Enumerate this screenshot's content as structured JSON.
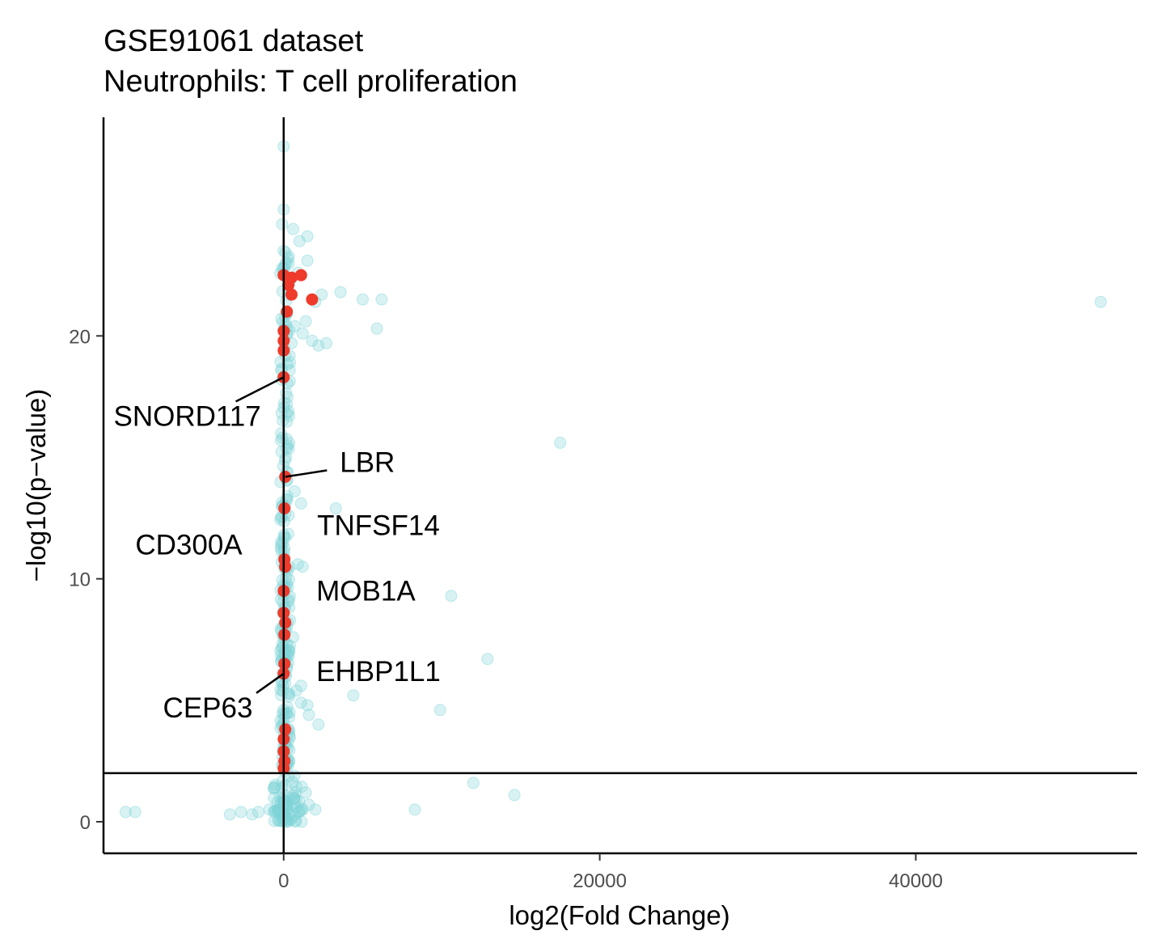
{
  "chart_data": {
    "type": "scatter",
    "title": "GSE91061 dataset",
    "subtitle": "Neutrophils: T cell proliferation",
    "xlabel": "log2(Fold Change)",
    "ylabel": "−log10(p−value)",
    "xlim": [
      -11400,
      54000
    ],
    "ylim": [
      -1.3,
      29
    ],
    "x_ticks": [
      0,
      20000,
      40000
    ],
    "x_tick_labels": [
      "0",
      "20000",
      "40000"
    ],
    "y_ticks": [
      0,
      10,
      20
    ],
    "y_tick_labels": [
      "0",
      "10",
      "20"
    ],
    "grid": false,
    "legend": "none",
    "reference_lines": {
      "vertical_x": 0,
      "horizontal_y": 2
    },
    "colors": {
      "background_points": "#7fd3d6",
      "highlight_points": "#ee3b2b"
    },
    "background_points": [
      [
        -10000,
        0.4
      ],
      [
        -9400,
        0.4
      ],
      [
        -3400,
        0.3
      ],
      [
        -2700,
        0.4
      ],
      [
        -2000,
        0.3
      ],
      [
        -1600,
        0.4
      ],
      [
        -900,
        0.5
      ],
      [
        -600,
        0.4
      ],
      [
        -300,
        0.5
      ],
      [
        -150,
        0.3
      ],
      [
        200,
        0.5
      ],
      [
        500,
        0.4
      ],
      [
        800,
        0.6
      ],
      [
        1200,
        0.5
      ],
      [
        1600,
        0.7
      ],
      [
        2000,
        0.5
      ],
      [
        1400,
        1.2
      ],
      [
        8300,
        0.5
      ],
      [
        12000,
        1.6
      ],
      [
        14600,
        1.1
      ],
      [
        2200,
        4.0
      ],
      [
        1600,
        4.4
      ],
      [
        1500,
        4.8
      ],
      [
        1100,
        4.9
      ],
      [
        800,
        5.4
      ],
      [
        4400,
        5.2
      ],
      [
        9900,
        4.6
      ],
      [
        12900,
        6.7
      ],
      [
        10600,
        9.3
      ],
      [
        1100,
        5.6
      ],
      [
        600,
        7.6
      ],
      [
        400,
        8.3
      ],
      [
        900,
        10.6
      ],
      [
        1200,
        10.5
      ],
      [
        1100,
        13.1
      ],
      [
        3300,
        12.9
      ],
      [
        17500,
        15.6
      ],
      [
        700,
        13.6
      ],
      [
        300,
        16.9
      ],
      [
        400,
        18.9
      ],
      [
        500,
        19.7
      ],
      [
        700,
        20.4
      ],
      [
        1200,
        20.1
      ],
      [
        1400,
        20.6
      ],
      [
        1800,
        19.8
      ],
      [
        2200,
        19.6
      ],
      [
        2700,
        19.7
      ],
      [
        2000,
        21.4
      ],
      [
        2400,
        21.7
      ],
      [
        3600,
        21.8
      ],
      [
        5000,
        21.5
      ],
      [
        6200,
        21.5
      ],
      [
        5900,
        20.3
      ],
      [
        900,
        22.6
      ],
      [
        1500,
        23.1
      ],
      [
        1000,
        23.9
      ],
      [
        1500,
        24.1
      ],
      [
        600,
        24.4
      ],
      [
        0,
        25.2
      ],
      [
        0,
        27.8
      ],
      [
        51700,
        21.4
      ],
      [
        300,
        21.9
      ],
      [
        100,
        19.2
      ],
      [
        200,
        17.2
      ],
      [
        100,
        13.0
      ],
      [
        100,
        11.7
      ],
      [
        200,
        9.8
      ],
      [
        200,
        7.3
      ],
      [
        150,
        6.0
      ],
      [
        100,
        3.3
      ],
      [
        250,
        2.6
      ],
      [
        100,
        1.5
      ],
      [
        50,
        0.8
      ],
      [
        -100,
        1.4
      ],
      [
        300,
        1.0
      ],
      [
        600,
        1.1
      ],
      [
        -400,
        0.8
      ],
      [
        150,
        15.0
      ],
      [
        250,
        14.4
      ],
      [
        50,
        22.8
      ],
      [
        0,
        23.5
      ],
      [
        -100,
        24.6
      ],
      [
        100,
        20.8
      ]
    ],
    "highlight_points": [
      [
        0,
        22.5
      ],
      [
        500,
        22.4
      ],
      [
        1100,
        22.5
      ],
      [
        300,
        22.1
      ],
      [
        500,
        21.7
      ],
      [
        1800,
        21.5
      ],
      [
        200,
        21.0
      ],
      [
        0,
        20.2
      ],
      [
        0,
        19.8
      ],
      [
        0,
        19.4
      ],
      [
        0,
        18.3
      ],
      [
        100,
        14.2
      ],
      [
        50,
        12.9
      ],
      [
        50,
        10.8
      ],
      [
        100,
        10.5
      ],
      [
        0,
        9.5
      ],
      [
        0,
        8.6
      ],
      [
        100,
        8.2
      ],
      [
        50,
        7.7
      ],
      [
        50,
        6.5
      ],
      [
        0,
        6.1
      ],
      [
        100,
        3.8
      ],
      [
        0,
        3.4
      ],
      [
        0,
        2.9
      ],
      [
        50,
        2.5
      ],
      [
        0,
        2.2
      ]
    ],
    "annotations": [
      {
        "label": "SNORD117",
        "point": [
          0,
          18.3
        ],
        "label_pos": [
          -6100,
          16.7
        ],
        "leader": true
      },
      {
        "label": "LBR",
        "point": [
          100,
          14.2
        ],
        "label_pos": [
          5300,
          14.8
        ],
        "leader": true
      },
      {
        "label": "TNFSF14",
        "point": null,
        "label_pos": [
          6000,
          12.2
        ],
        "leader": false
      },
      {
        "label": "CD300A",
        "point": null,
        "label_pos": [
          -6000,
          11.4
        ],
        "leader": false
      },
      {
        "label": "MOB1A",
        "point": null,
        "label_pos": [
          5200,
          9.5
        ],
        "leader": false
      },
      {
        "label": "EHBP1L1",
        "point": null,
        "label_pos": [
          6000,
          6.2
        ],
        "leader": false
      },
      {
        "label": "CEP63",
        "point": [
          0,
          6.1
        ],
        "label_pos": [
          -4800,
          4.7
        ],
        "leader": true
      }
    ]
  }
}
